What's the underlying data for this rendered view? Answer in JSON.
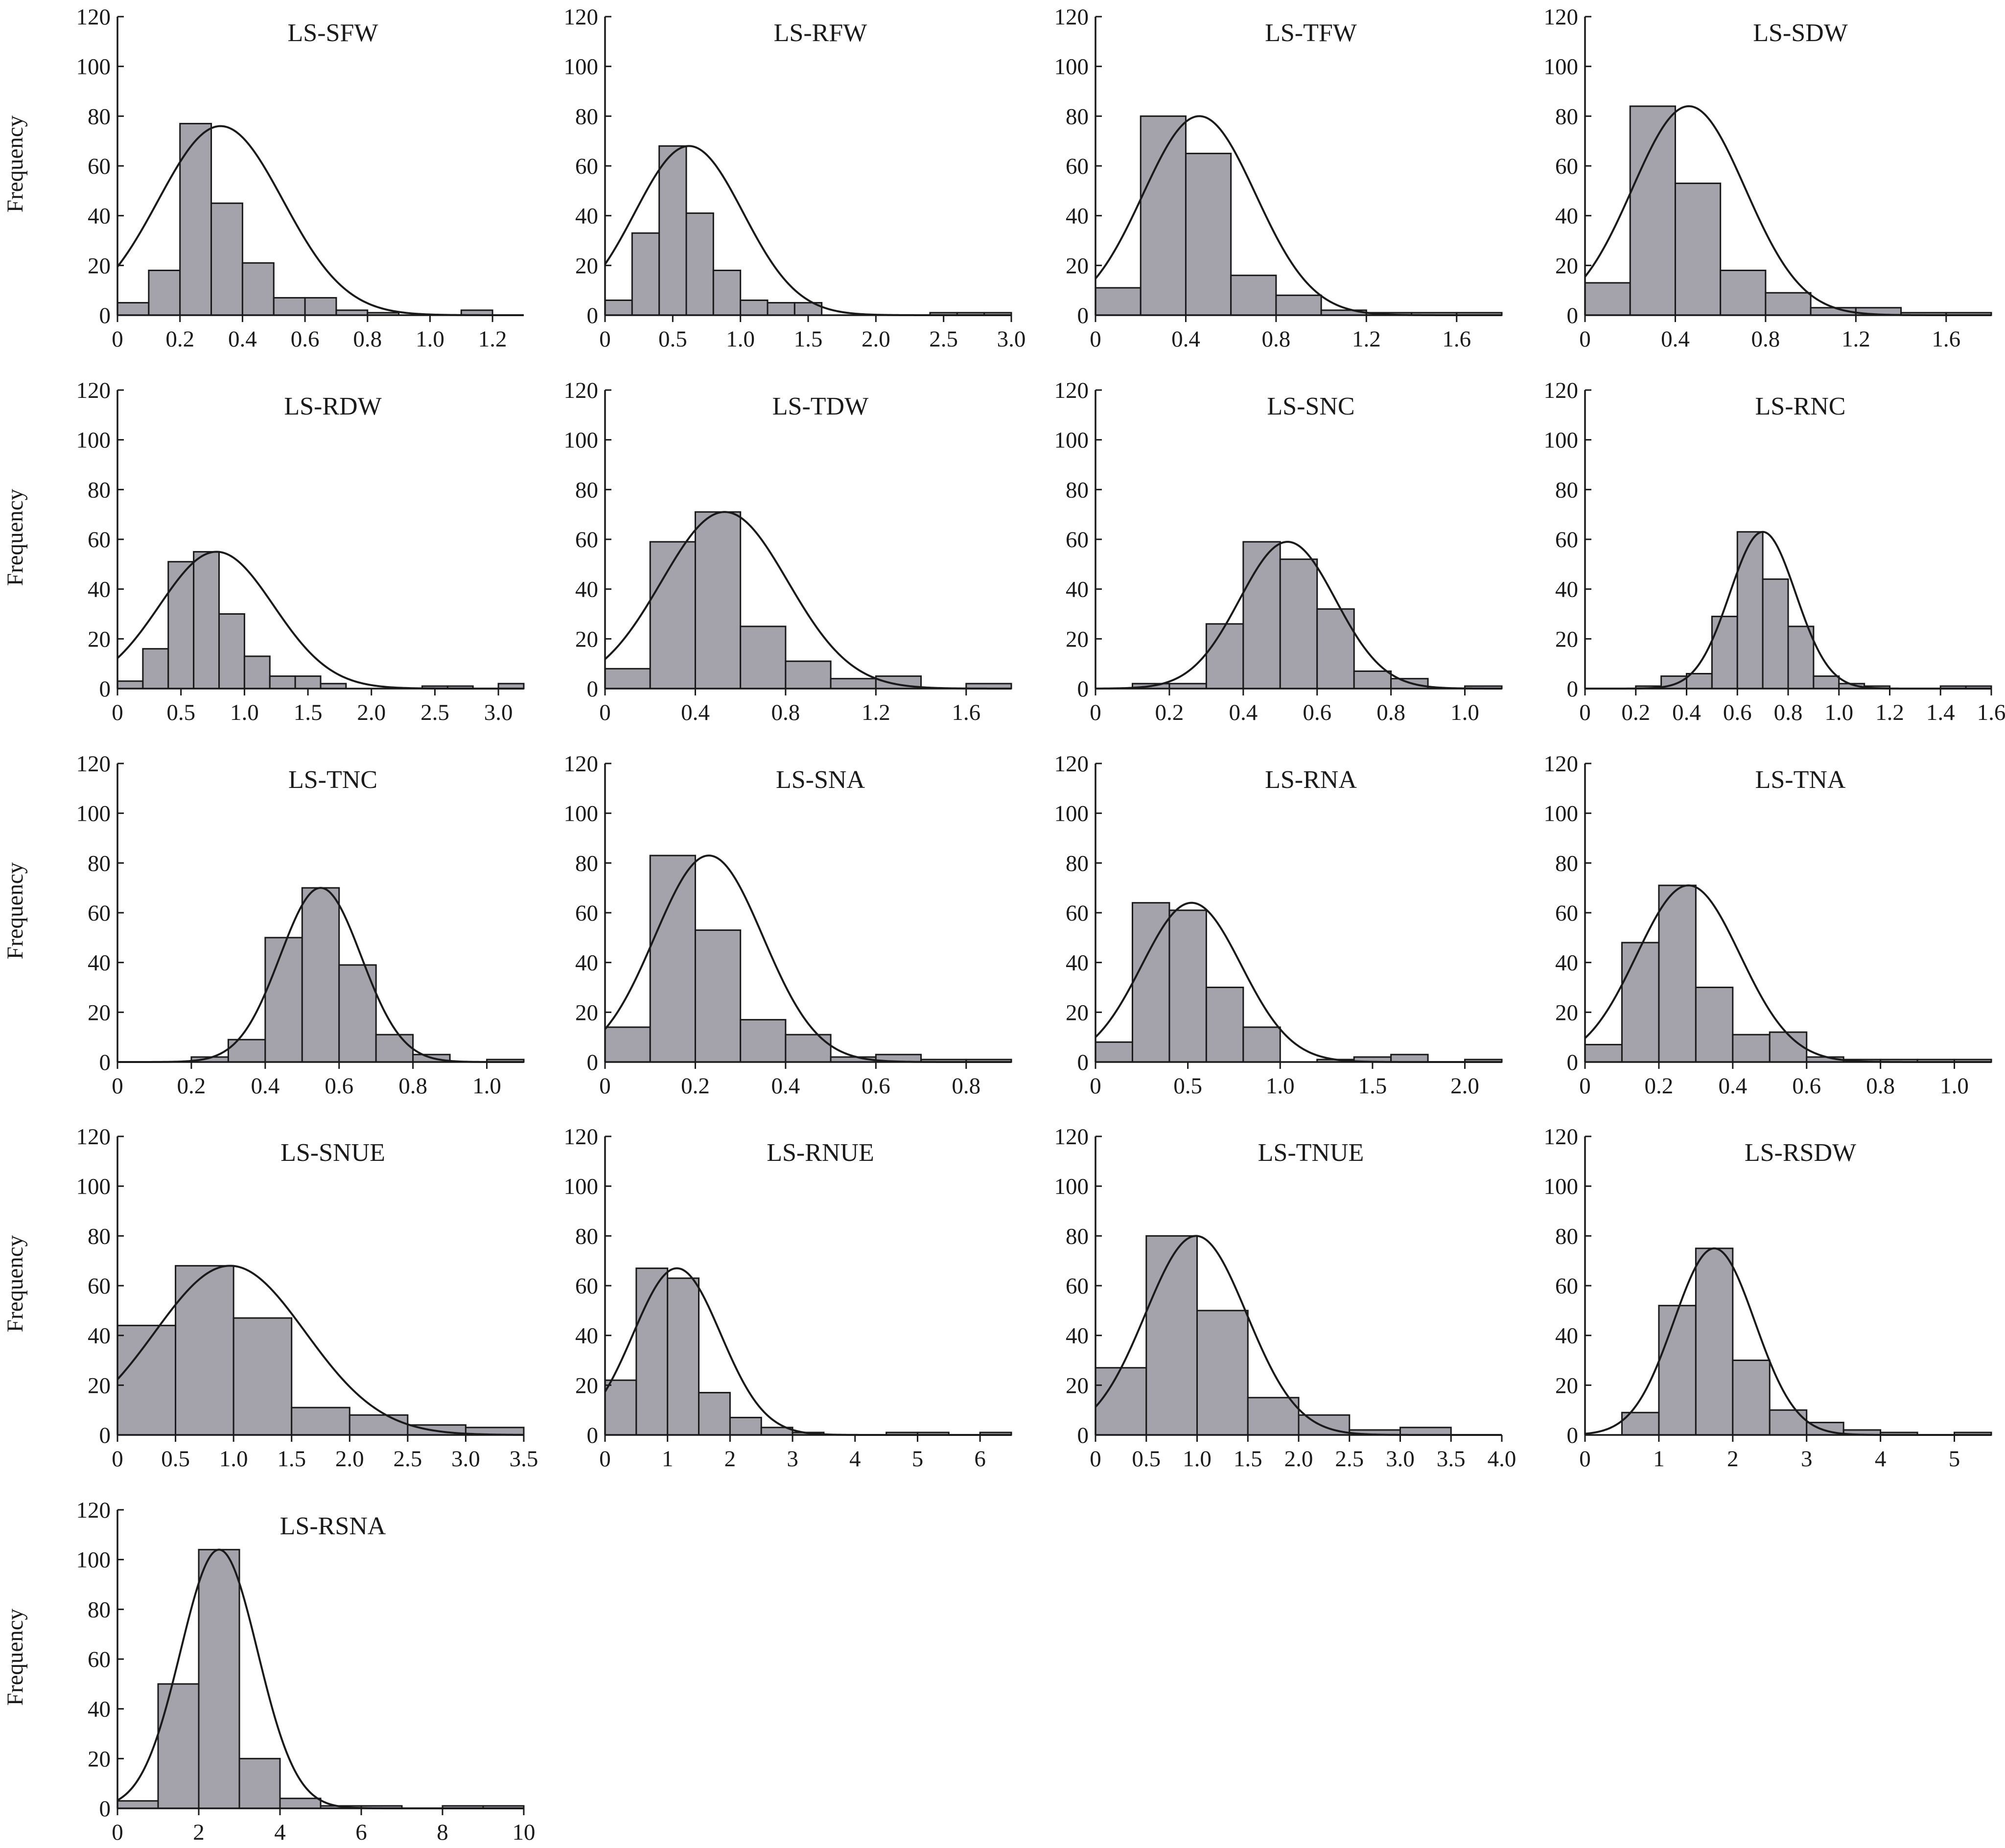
{
  "y_axis_title": "Frequency",
  "chart_data": [
    {
      "type": "bar",
      "title": "LS-SFW",
      "ylabel": "Frequency",
      "xlim": [
        0,
        1.3
      ],
      "ylim": [
        0,
        120
      ],
      "xticks": [
        0,
        0.2,
        0.4,
        0.6,
        0.8,
        1.0,
        1.2
      ],
      "xtick_labels": [
        "0",
        "0.2",
        "0.4",
        "0.6",
        "0.8",
        "1.0",
        "1.2"
      ],
      "yticks": [
        0,
        20,
        40,
        60,
        80,
        100,
        120
      ],
      "ytick_labels": [
        "0",
        "20",
        "40",
        "60",
        "80",
        "100",
        "120"
      ],
      "bin_edges": [
        0,
        0.1,
        0.2,
        0.3,
        0.4,
        0.5,
        0.6,
        0.7,
        0.8,
        0.9,
        1.0,
        1.1,
        1.2,
        1.3
      ],
      "counts": [
        5,
        18,
        77,
        45,
        21,
        7,
        7,
        2,
        1,
        0,
        0,
        2,
        0
      ],
      "normal_curve": {
        "mean": 0.33,
        "sd": 0.2,
        "peak": 76
      }
    },
    {
      "type": "bar",
      "title": "LS-RFW",
      "ylabel": "",
      "xlim": [
        0,
        3.0
      ],
      "ylim": [
        0,
        120
      ],
      "xticks": [
        0,
        0.5,
        1.0,
        1.5,
        2.0,
        2.5,
        3.0
      ],
      "xtick_labels": [
        "0",
        "0.5",
        "1.0",
        "1.5",
        "2.0",
        "2.5",
        "3.0"
      ],
      "yticks": [
        0,
        20,
        40,
        60,
        80,
        100,
        120
      ],
      "ytick_labels": [
        "0",
        "20",
        "40",
        "60",
        "80",
        "100",
        "120"
      ],
      "bin_edges": [
        0,
        0.2,
        0.4,
        0.6,
        0.8,
        1.0,
        1.2,
        1.4,
        1.6,
        1.8,
        2.0,
        2.2,
        2.4,
        2.6,
        2.8,
        3.0
      ],
      "counts": [
        6,
        33,
        68,
        41,
        18,
        6,
        5,
        5,
        0,
        0,
        0,
        0,
        1,
        1,
        1
      ],
      "normal_curve": {
        "mean": 0.62,
        "sd": 0.4,
        "peak": 68
      }
    },
    {
      "type": "bar",
      "title": "LS-TFW",
      "ylabel": "",
      "xlim": [
        0,
        1.8
      ],
      "ylim": [
        0,
        120
      ],
      "xticks": [
        0,
        0.4,
        0.8,
        1.2,
        1.6
      ],
      "xtick_labels": [
        "0",
        "0.4",
        "0.8",
        "1.2",
        "1.6"
      ],
      "yticks": [
        0,
        20,
        40,
        60,
        80,
        100,
        120
      ],
      "ytick_labels": [
        "0",
        "20",
        "40",
        "60",
        "80",
        "100",
        "120"
      ],
      "bin_edges": [
        0,
        0.2,
        0.4,
        0.6,
        0.8,
        1.0,
        1.2,
        1.4,
        1.6,
        1.8
      ],
      "counts": [
        11,
        80,
        65,
        16,
        8,
        2,
        1,
        1,
        1
      ],
      "normal_curve": {
        "mean": 0.46,
        "sd": 0.25,
        "peak": 80
      }
    },
    {
      "type": "bar",
      "title": "LS-SDW",
      "ylabel": "",
      "xlim": [
        0,
        1.8
      ],
      "ylim": [
        0,
        120
      ],
      "xticks": [
        0,
        0.4,
        0.8,
        1.2,
        1.6
      ],
      "xtick_labels": [
        "0",
        "0.4",
        "0.8",
        "1.2",
        "1.6"
      ],
      "yticks": [
        0,
        20,
        40,
        60,
        80,
        100,
        120
      ],
      "ytick_labels": [
        "0",
        "20",
        "40",
        "60",
        "80",
        "100",
        "120"
      ],
      "bin_edges": [
        0,
        0.2,
        0.4,
        0.6,
        0.8,
        1.0,
        1.2,
        1.4,
        1.6,
        1.8
      ],
      "counts": [
        13,
        84,
        53,
        18,
        9,
        3,
        3,
        1,
        1
      ],
      "normal_curve": {
        "mean": 0.46,
        "sd": 0.25,
        "peak": 84
      }
    },
    {
      "type": "bar",
      "title": "LS-RDW",
      "ylabel": "Frequency",
      "xlim": [
        0,
        3.2
      ],
      "ylim": [
        0,
        120
      ],
      "xticks": [
        0,
        0.5,
        1.0,
        1.5,
        2.0,
        2.5,
        3.0
      ],
      "xtick_labels": [
        "0",
        "0.5",
        "1.0",
        "1.5",
        "2.0",
        "2.5",
        "3.0"
      ],
      "yticks": [
        0,
        20,
        40,
        60,
        80,
        100,
        120
      ],
      "ytick_labels": [
        "0",
        "20",
        "40",
        "60",
        "80",
        "100",
        "120"
      ],
      "bin_edges": [
        0,
        0.2,
        0.4,
        0.6,
        0.8,
        1.0,
        1.2,
        1.4,
        1.6,
        1.8,
        2.0,
        2.2,
        2.4,
        2.6,
        2.8,
        3.0,
        3.2
      ],
      "counts": [
        3,
        16,
        51,
        55,
        30,
        13,
        5,
        5,
        2,
        0,
        0,
        0,
        1,
        1,
        0,
        2
      ],
      "normal_curve": {
        "mean": 0.78,
        "sd": 0.45,
        "peak": 55
      }
    },
    {
      "type": "bar",
      "title": "LS-TDW",
      "ylabel": "",
      "xlim": [
        0,
        1.8
      ],
      "ylim": [
        0,
        120
      ],
      "xticks": [
        0,
        0.4,
        0.8,
        1.2,
        1.6
      ],
      "xtick_labels": [
        "0",
        "0.4",
        "0.8",
        "1.2",
        "1.6"
      ],
      "yticks": [
        0,
        20,
        40,
        60,
        80,
        100,
        120
      ],
      "ytick_labels": [
        "0",
        "20",
        "40",
        "60",
        "80",
        "100",
        "120"
      ],
      "bin_edges": [
        0,
        0.2,
        0.4,
        0.6,
        0.8,
        1.0,
        1.2,
        1.4,
        1.6,
        1.8
      ],
      "counts": [
        8,
        59,
        71,
        25,
        11,
        4,
        5,
        0,
        2
      ],
      "normal_curve": {
        "mean": 0.53,
        "sd": 0.28,
        "peak": 71
      }
    },
    {
      "type": "bar",
      "title": "LS-SNC",
      "ylabel": "",
      "xlim": [
        0,
        1.1
      ],
      "ylim": [
        0,
        120
      ],
      "xticks": [
        0,
        0.2,
        0.4,
        0.6,
        0.8,
        1.0
      ],
      "xtick_labels": [
        "0",
        "0.2",
        "0.4",
        "0.6",
        "0.8",
        "1.0"
      ],
      "yticks": [
        0,
        20,
        40,
        60,
        80,
        100,
        120
      ],
      "ytick_labels": [
        "0",
        "20",
        "40",
        "60",
        "80",
        "100",
        "120"
      ],
      "bin_edges": [
        0.1,
        0.2,
        0.3,
        0.4,
        0.5,
        0.6,
        0.7,
        0.8,
        0.9,
        1.0,
        1.1
      ],
      "counts": [
        2,
        2,
        26,
        59,
        52,
        32,
        7,
        4,
        0,
        1
      ],
      "normal_curve": {
        "mean": 0.52,
        "sd": 0.13,
        "peak": 59
      }
    },
    {
      "type": "bar",
      "title": "LS-RNC",
      "ylabel": "",
      "xlim": [
        0,
        1.6
      ],
      "ylim": [
        0,
        120
      ],
      "xticks": [
        0,
        0.2,
        0.4,
        0.6,
        0.8,
        1.0,
        1.2,
        1.4,
        1.6
      ],
      "xtick_labels": [
        "0",
        "0.2",
        "0.4",
        "0.6",
        "0.8",
        "1.0",
        "1.2",
        "1.4",
        "1.6"
      ],
      "yticks": [
        0,
        20,
        40,
        60,
        80,
        100,
        120
      ],
      "ytick_labels": [
        "0",
        "20",
        "40",
        "60",
        "80",
        "100",
        "120"
      ],
      "bin_edges": [
        0.2,
        0.3,
        0.4,
        0.5,
        0.6,
        0.7,
        0.8,
        0.9,
        1.0,
        1.1,
        1.2,
        1.3,
        1.4,
        1.5,
        1.6
      ],
      "counts": [
        1,
        5,
        6,
        29,
        63,
        44,
        25,
        5,
        2,
        1,
        0,
        0,
        1,
        1
      ],
      "normal_curve": {
        "mean": 0.7,
        "sd": 0.13,
        "peak": 63
      }
    },
    {
      "type": "bar",
      "title": "LS-TNC",
      "ylabel": "Frequency",
      "xlim": [
        0,
        1.1
      ],
      "ylim": [
        0,
        120
      ],
      "xticks": [
        0,
        0.2,
        0.4,
        0.6,
        0.8,
        1.0
      ],
      "xtick_labels": [
        "0",
        "0.2",
        "0.4",
        "0.6",
        "0.8",
        "1.0"
      ],
      "yticks": [
        0,
        20,
        40,
        60,
        80,
        100,
        120
      ],
      "ytick_labels": [
        "0",
        "20",
        "40",
        "60",
        "80",
        "100",
        "120"
      ],
      "bin_edges": [
        0.2,
        0.3,
        0.4,
        0.5,
        0.6,
        0.7,
        0.8,
        0.9,
        1.0,
        1.1
      ],
      "counts": [
        2,
        9,
        50,
        70,
        39,
        11,
        3,
        0,
        1
      ],
      "normal_curve": {
        "mean": 0.55,
        "sd": 0.11,
        "peak": 70
      }
    },
    {
      "type": "bar",
      "title": "LS-SNA",
      "ylabel": "",
      "xlim": [
        0,
        0.9
      ],
      "ylim": [
        0,
        120
      ],
      "xticks": [
        0,
        0.2,
        0.4,
        0.6,
        0.8
      ],
      "xtick_labels": [
        "0",
        "0.2",
        "0.4",
        "0.6",
        "0.8"
      ],
      "yticks": [
        0,
        20,
        40,
        60,
        80,
        100,
        120
      ],
      "ytick_labels": [
        "0",
        "20",
        "40",
        "60",
        "80",
        "100",
        "120"
      ],
      "bin_edges": [
        0,
        0.1,
        0.2,
        0.3,
        0.4,
        0.5,
        0.6,
        0.7,
        0.8,
        0.9
      ],
      "counts": [
        14,
        83,
        53,
        17,
        11,
        2,
        3,
        1,
        1
      ],
      "normal_curve": {
        "mean": 0.23,
        "sd": 0.12,
        "peak": 83
      }
    },
    {
      "type": "bar",
      "title": "LS-RNA",
      "ylabel": "",
      "xlim": [
        0,
        2.2
      ],
      "ylim": [
        0,
        120
      ],
      "xticks": [
        0,
        0.5,
        1.0,
        1.5,
        2.0
      ],
      "xtick_labels": [
        "0",
        "0.5",
        "1.0",
        "1.5",
        "2.0"
      ],
      "yticks": [
        0,
        20,
        40,
        60,
        80,
        100,
        120
      ],
      "ytick_labels": [
        "0",
        "20",
        "40",
        "60",
        "80",
        "100",
        "120"
      ],
      "bin_edges": [
        0,
        0.2,
        0.4,
        0.6,
        0.8,
        1.0,
        1.2,
        1.4,
        1.6,
        1.8,
        2.0,
        2.2
      ],
      "counts": [
        8,
        64,
        61,
        30,
        14,
        0,
        1,
        2,
        3,
        0,
        1
      ],
      "normal_curve": {
        "mean": 0.52,
        "sd": 0.27,
        "peak": 64
      }
    },
    {
      "type": "bar",
      "title": "LS-TNA",
      "ylabel": "",
      "xlim": [
        0,
        1.1
      ],
      "ylim": [
        0,
        120
      ],
      "xticks": [
        0,
        0.2,
        0.4,
        0.6,
        0.8,
        1.0
      ],
      "xtick_labels": [
        "0",
        "0.2",
        "0.4",
        "0.6",
        "0.8",
        "1.0"
      ],
      "yticks": [
        0,
        20,
        40,
        60,
        80,
        100,
        120
      ],
      "ytick_labels": [
        "0",
        "20",
        "40",
        "60",
        "80",
        "100",
        "120"
      ],
      "bin_edges": [
        0,
        0.1,
        0.2,
        0.3,
        0.4,
        0.5,
        0.6,
        0.7,
        0.8,
        0.9,
        1.0,
        1.1
      ],
      "counts": [
        7,
        48,
        71,
        30,
        11,
        12,
        2,
        1,
        1,
        1,
        1
      ],
      "normal_curve": {
        "mean": 0.28,
        "sd": 0.14,
        "peak": 71
      }
    },
    {
      "type": "bar",
      "title": "LS-SNUE",
      "ylabel": "Frequency",
      "xlim": [
        0,
        3.5
      ],
      "ylim": [
        0,
        120
      ],
      "xticks": [
        0,
        0.5,
        1.0,
        1.5,
        2.0,
        2.5,
        3.0,
        3.5
      ],
      "xtick_labels": [
        "0",
        "0.5",
        "1.0",
        "1.5",
        "2.0",
        "2.5",
        "3.0",
        "3.5"
      ],
      "yticks": [
        0,
        20,
        40,
        60,
        80,
        100,
        120
      ],
      "ytick_labels": [
        "0",
        "20",
        "40",
        "60",
        "80",
        "100",
        "120"
      ],
      "bin_edges": [
        0,
        0.5,
        1.0,
        1.5,
        2.0,
        2.5,
        3.0,
        3.5
      ],
      "counts": [
        44,
        68,
        47,
        11,
        8,
        4,
        3
      ],
      "normal_curve": {
        "mean": 0.97,
        "sd": 0.65,
        "peak": 68
      }
    },
    {
      "type": "bar",
      "title": "LS-RNUE",
      "ylabel": "",
      "xlim": [
        0,
        6.5
      ],
      "ylim": [
        0,
        120
      ],
      "xticks": [
        0,
        1,
        2,
        3,
        4,
        5,
        6
      ],
      "xtick_labels": [
        "0",
        "1",
        "2",
        "3",
        "4",
        "5",
        "6"
      ],
      "yticks": [
        0,
        20,
        40,
        60,
        80,
        100,
        120
      ],
      "ytick_labels": [
        "0",
        "20",
        "40",
        "60",
        "80",
        "100",
        "120"
      ],
      "bin_edges": [
        0,
        0.5,
        1.0,
        1.5,
        2.0,
        2.5,
        3.0,
        3.5,
        4.0,
        4.5,
        5.0,
        5.5,
        6.0,
        6.5
      ],
      "counts": [
        22,
        67,
        63,
        17,
        7,
        3,
        1,
        0,
        0,
        1,
        1,
        0,
        1
      ],
      "normal_curve": {
        "mean": 1.15,
        "sd": 0.7,
        "peak": 67
      }
    },
    {
      "type": "bar",
      "title": "LS-TNUE",
      "ylabel": "",
      "xlim": [
        0,
        4.0
      ],
      "ylim": [
        0,
        120
      ],
      "xticks": [
        0,
        0.5,
        1.0,
        1.5,
        2.0,
        2.5,
        3.0,
        3.5,
        4.0
      ],
      "xtick_labels": [
        "0",
        "0.5",
        "1.0",
        "1.5",
        "2.0",
        "2.5",
        "3.0",
        "3.5",
        "4.0"
      ],
      "yticks": [
        0,
        20,
        40,
        60,
        80,
        100,
        120
      ],
      "ytick_labels": [
        "0",
        "20",
        "40",
        "60",
        "80",
        "100",
        "120"
      ],
      "bin_edges": [
        0,
        0.5,
        1.0,
        1.5,
        2.0,
        2.5,
        3.0,
        3.5
      ],
      "counts": [
        27,
        80,
        50,
        15,
        8,
        2,
        3
      ],
      "normal_curve": {
        "mean": 0.99,
        "sd": 0.5,
        "peak": 80
      }
    },
    {
      "type": "bar",
      "title": "LS-RSDW",
      "ylabel": "",
      "xlim": [
        0,
        5.5
      ],
      "ylim": [
        0,
        120
      ],
      "xticks": [
        0,
        1,
        2,
        3,
        4,
        5
      ],
      "xtick_labels": [
        "0",
        "1",
        "2",
        "3",
        "4",
        "5"
      ],
      "yticks": [
        0,
        20,
        40,
        60,
        80,
        100,
        120
      ],
      "ytick_labels": [
        "0",
        "20",
        "40",
        "60",
        "80",
        "100",
        "120"
      ],
      "bin_edges": [
        0.5,
        1.0,
        1.5,
        2.0,
        2.5,
        3.0,
        3.5,
        4.0,
        4.5,
        5.0,
        5.5
      ],
      "counts": [
        9,
        52,
        75,
        30,
        10,
        5,
        2,
        1,
        0,
        1
      ],
      "normal_curve": {
        "mean": 1.75,
        "sd": 0.55,
        "peak": 75
      }
    },
    {
      "type": "bar",
      "title": "LS-RSNA",
      "ylabel": "Frequency",
      "xlim": [
        0,
        10
      ],
      "ylim": [
        0,
        120
      ],
      "xticks": [
        0,
        2,
        4,
        6,
        8,
        10
      ],
      "xtick_labels": [
        "0",
        "2",
        "4",
        "6",
        "8",
        "10"
      ],
      "yticks": [
        0,
        20,
        40,
        60,
        80,
        100,
        120
      ],
      "ytick_labels": [
        "0",
        "20",
        "40",
        "60",
        "80",
        "100",
        "120"
      ],
      "bin_edges": [
        0,
        1,
        2,
        3,
        4,
        5,
        6,
        7,
        8,
        9,
        10
      ],
      "counts": [
        3,
        50,
        104,
        20,
        4,
        1,
        1,
        0,
        1,
        1
      ],
      "normal_curve": {
        "mean": 2.5,
        "sd": 0.95,
        "peak": 104
      }
    }
  ]
}
